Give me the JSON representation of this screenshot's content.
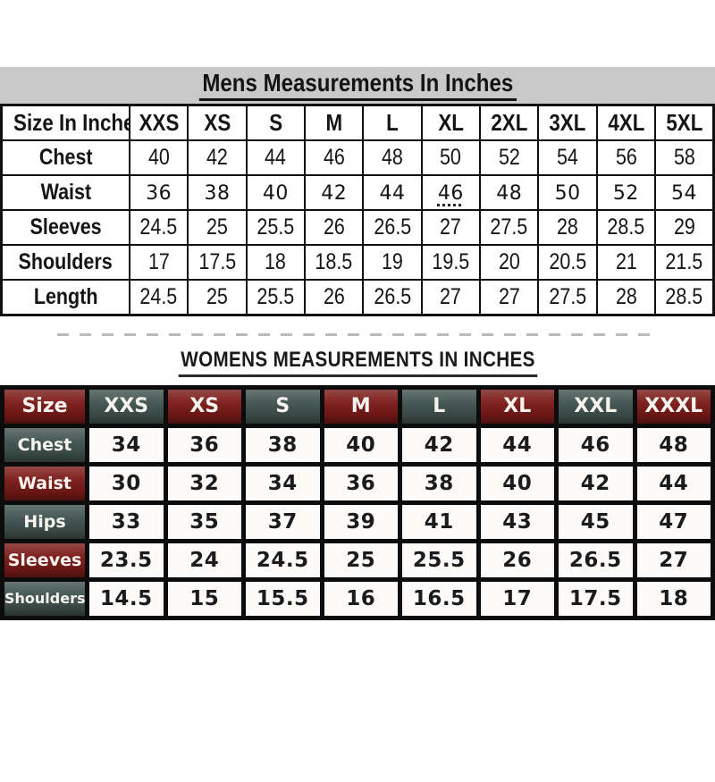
{
  "chart_data": [
    {
      "type": "table",
      "title": "Mens Measurements In Inches",
      "columns": [
        "Size In Inches",
        "XXS",
        "XS",
        "S",
        "M",
        "L",
        "XL",
        "2XL",
        "3XL",
        "4XL",
        "5XL"
      ],
      "rows": [
        {
          "label": "Chest",
          "values": [
            "40",
            "42",
            "44",
            "46",
            "48",
            "50",
            "52",
            "54",
            "56",
            "58"
          ]
        },
        {
          "label": "Waist",
          "values": [
            "36",
            "38",
            "40",
            "42",
            "44",
            "46",
            "48",
            "50",
            "52",
            "54"
          ]
        },
        {
          "label": "Sleeves",
          "values": [
            "24.5",
            "25",
            "25.5",
            "26",
            "26.5",
            "27",
            "27.5",
            "28",
            "28.5",
            "29"
          ]
        },
        {
          "label": "Shoulders",
          "values": [
            "17",
            "17.5",
            "18",
            "18.5",
            "19",
            "19.5",
            "20",
            "20.5",
            "21",
            "21.5"
          ]
        },
        {
          "label": "Length",
          "values": [
            "24.5",
            "25",
            "25.5",
            "26",
            "26.5",
            "27",
            "27",
            "27.5",
            "28",
            "28.5"
          ]
        }
      ],
      "waist_row_alt_font": true,
      "underlined_cell": {
        "row_label": "Waist",
        "column": "XL",
        "value": "46"
      }
    },
    {
      "type": "table",
      "title": "WOMENS MEASUREMENTS IN INCHES",
      "columns": [
        "Size",
        "XXS",
        "XS",
        "S",
        "M",
        "L",
        "XL",
        "XXL",
        "XXXL"
      ],
      "rows": [
        {
          "label": "Chest",
          "values": [
            "34",
            "36",
            "38",
            "40",
            "42",
            "44",
            "46",
            "48"
          ]
        },
        {
          "label": "Waist",
          "values": [
            "30",
            "32",
            "34",
            "36",
            "38",
            "40",
            "42",
            "44"
          ]
        },
        {
          "label": "Hips",
          "values": [
            "33",
            "35",
            "37",
            "39",
            "41",
            "43",
            "45",
            "47"
          ]
        },
        {
          "label": "Sleeves",
          "values": [
            "23.5",
            "24",
            "24.5",
            "25",
            "25.5",
            "26",
            "26.5",
            "27"
          ]
        },
        {
          "label": "Shoulders",
          "values": [
            "14.5",
            "15",
            "15.5",
            "16",
            "16.5",
            "17",
            "17.5",
            "18"
          ]
        }
      ]
    }
  ],
  "styles": {
    "mens_title_band_gray": "#c9c9c9",
    "mens_grid_border": "#101010",
    "womens_maroon": "#7b1a18",
    "womens_teal_green": "#41534f",
    "womens_grid_black": "#0c0c0c",
    "data_cell_white": "#fcfbf9"
  }
}
